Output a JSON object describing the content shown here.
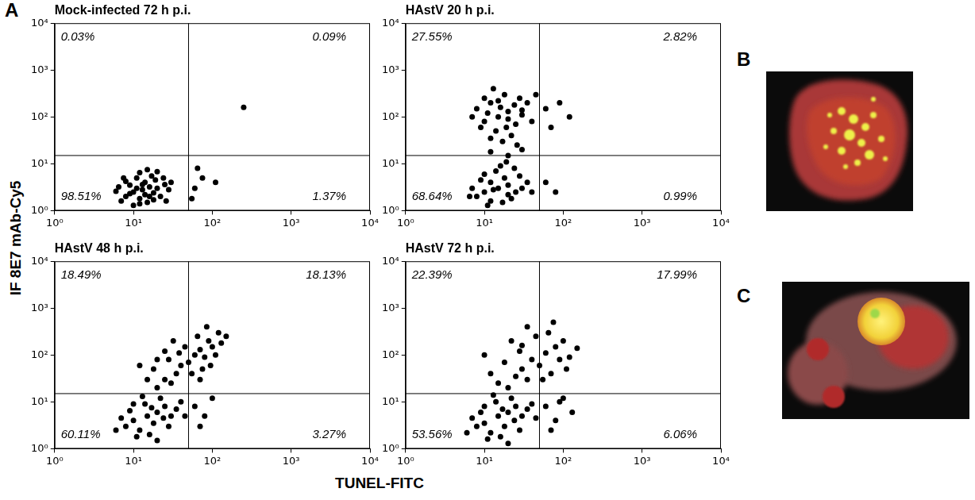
{
  "panel_labels": [
    "A",
    "B",
    "C"
  ],
  "axis_titles": {
    "x": "TUNEL-FITC",
    "y": "IF 8E7 mAb-Cy5"
  },
  "chart_data": [
    {
      "type": "scatter",
      "title": "Mock-infected 72 h p.i.",
      "color": "#000000",
      "log": true,
      "grid": false,
      "xlim": [
        1,
        10000
      ],
      "ylim": [
        1,
        10000
      ],
      "xticks": [
        {
          "value": 1,
          "label": "10⁰"
        },
        {
          "value": 10,
          "label": "10¹"
        },
        {
          "value": 100,
          "label": "10²"
        },
        {
          "value": 1000,
          "label": "10³"
        },
        {
          "value": 10000,
          "label": "10⁴"
        }
      ],
      "yticks": [
        {
          "value": 1,
          "label": "10⁰"
        },
        {
          "value": 10,
          "label": "10¹"
        },
        {
          "value": 100,
          "label": "10²"
        },
        {
          "value": 1000,
          "label": "10³"
        },
        {
          "value": 10000,
          "label": "10⁴"
        }
      ],
      "quadrant_gate": {
        "x": 50,
        "y": 15
      },
      "quadrants": {
        "upper_left": "0.03%",
        "upper_right": "0.09%",
        "lower_left": "98.51%",
        "lower_right": "1.37%"
      },
      "x": [
        13,
        10,
        16,
        8,
        12,
        18,
        14,
        9,
        20,
        11,
        7,
        15,
        22,
        6,
        25,
        17,
        12,
        19,
        10,
        14,
        8,
        24,
        28,
        6.5,
        13,
        16,
        11,
        20,
        9,
        18,
        30,
        7.5,
        15,
        26,
        12,
        60,
        75,
        55,
        110,
        65,
        250
      ],
      "values": [
        2.8,
        2.5,
        3.2,
        2,
        1.8,
        2.4,
        4,
        3.5,
        3,
        5,
        1.6,
        1.5,
        2,
        2.6,
        3.6,
        5.5,
        6.5,
        4.5,
        1.3,
        2.2,
        4.2,
        5,
        2.8,
        3.2,
        3.6,
        2,
        3,
        6.8,
        2.3,
        1.7,
        4,
        5,
        7.5,
        1.6,
        1.4,
        3,
        5,
        1.8,
        4,
        8,
        160
      ]
    },
    {
      "type": "scatter",
      "title": "HAstV 20 h p.i.",
      "color": "#000000",
      "log": true,
      "grid": false,
      "xlim": [
        1,
        10000
      ],
      "ylim": [
        1,
        10000
      ],
      "xticks": [
        {
          "value": 1,
          "label": "10⁰"
        },
        {
          "value": 10,
          "label": "10¹"
        },
        {
          "value": 100,
          "label": "10²"
        },
        {
          "value": 1000,
          "label": "10³"
        },
        {
          "value": 10000,
          "label": "10⁴"
        }
      ],
      "yticks": [
        {
          "value": 1,
          "label": "10⁰"
        },
        {
          "value": 10,
          "label": "10¹"
        },
        {
          "value": 100,
          "label": "10²"
        },
        {
          "value": 1000,
          "label": "10³"
        },
        {
          "value": 10000,
          "label": "10⁴"
        }
      ],
      "quadrant_gate": {
        "x": 50,
        "y": 15
      },
      "quadrants": {
        "upper_left": "27.55%",
        "upper_right": "2.82%",
        "lower_left": "68.64%",
        "lower_right": "0.99%"
      },
      "x": [
        15,
        10,
        20,
        8,
        12,
        25,
        18,
        9,
        30,
        14,
        11,
        22,
        7,
        28,
        16,
        12,
        20,
        35,
        10,
        24,
        6.5,
        17,
        13,
        40,
        19,
        15,
        10,
        20,
        12,
        25,
        8,
        18,
        30,
        14,
        22,
        9,
        16,
        35,
        11,
        28,
        13,
        20,
        7,
        24,
        17,
        40,
        12,
        30,
        19,
        45,
        60,
        70,
        26,
        10,
        15,
        90,
        120,
        60,
        80,
        20,
        30,
        12
      ],
      "values": [
        3,
        2.5,
        3.5,
        2,
        1.6,
        2.5,
        5,
        4.5,
        3,
        7,
        1.3,
        1.8,
        3,
        5.5,
        9,
        4,
        2.2,
        4,
        6,
        8,
        2,
        1.5,
        2.8,
        2.5,
        11,
        100,
        80,
        130,
        200,
        70,
        150,
        300,
        110,
        50,
        40,
        60,
        160,
        200,
        120,
        250,
        400,
        90,
        100,
        180,
        30,
        80,
        35,
        140,
        60,
        300,
        150,
        60,
        25,
        250,
        220,
        200,
        100,
        4,
        2.5,
        15,
        20,
        18
      ]
    },
    {
      "type": "scatter",
      "title": "HAstV 48 h p.i.",
      "color": "#000000",
      "log": true,
      "grid": false,
      "xlim": [
        1,
        10000
      ],
      "ylim": [
        1,
        10000
      ],
      "xticks": [
        {
          "value": 1,
          "label": "10⁰"
        },
        {
          "value": 10,
          "label": "10¹"
        },
        {
          "value": 100,
          "label": "10²"
        },
        {
          "value": 1000,
          "label": "10³"
        },
        {
          "value": 10000,
          "label": "10⁴"
        }
      ],
      "yticks": [
        {
          "value": 1,
          "label": "10⁰"
        },
        {
          "value": 10,
          "label": "10¹"
        },
        {
          "value": 100,
          "label": "10²"
        },
        {
          "value": 1000,
          "label": "10³"
        },
        {
          "value": 10000,
          "label": "10⁴"
        }
      ],
      "quadrant_gate": {
        "x": 50,
        "y": 15
      },
      "quadrants": {
        "upper_left": "18.49%",
        "upper_right": "18.13%",
        "lower_left": "60.11%",
        "lower_right": "3.27%"
      },
      "x": [
        15,
        10,
        20,
        8,
        12,
        25,
        18,
        30,
        9,
        14,
        22,
        11,
        35,
        16,
        7,
        28,
        40,
        13,
        20,
        45,
        10,
        6,
        24,
        17,
        20,
        25,
        30,
        15,
        35,
        40,
        18,
        28,
        50,
        60,
        70,
        80,
        90,
        100,
        120,
        75,
        65,
        110,
        45,
        55,
        130,
        85,
        150,
        25,
        32,
        20,
        12,
        38,
        95,
        70,
        60,
        80,
        100,
        70
      ],
      "values": [
        5,
        4,
        6,
        3,
        2.5,
        8,
        3.5,
        5,
        6.5,
        9,
        12,
        1.8,
        7,
        2,
        4.5,
        3,
        10,
        13,
        1.5,
        5,
        9,
        2.5,
        4.5,
        7.5,
        20,
        30,
        25,
        30,
        40,
        60,
        50,
        80,
        70,
        100,
        130,
        90,
        200,
        150,
        300,
        50,
        250,
        100,
        150,
        40,
        180,
        400,
        250,
        120,
        200,
        80,
        60,
        110,
        60,
        30,
        8,
        5,
        12,
        3
      ]
    },
    {
      "type": "scatter",
      "title": "HAstV 72 h p.i.",
      "color": "#000000",
      "log": true,
      "grid": false,
      "xlim": [
        1,
        10000
      ],
      "ylim": [
        1,
        10000
      ],
      "xticks": [
        {
          "value": 1,
          "label": "10⁰"
        },
        {
          "value": 10,
          "label": "10¹"
        },
        {
          "value": 100,
          "label": "10²"
        },
        {
          "value": 1000,
          "label": "10³"
        },
        {
          "value": 10000,
          "label": "10⁴"
        }
      ],
      "yticks": [
        {
          "value": 1,
          "label": "10⁰"
        },
        {
          "value": 10,
          "label": "10¹"
        },
        {
          "value": 100,
          "label": "10²"
        },
        {
          "value": 1000,
          "label": "10³"
        },
        {
          "value": 10000,
          "label": "10⁴"
        }
      ],
      "quadrant_gate": {
        "x": 50,
        "y": 15
      },
      "quadrants": {
        "upper_left": "22.39%",
        "upper_right": "17.99%",
        "lower_left": "53.56%",
        "lower_right": "6.06%"
      },
      "x": [
        15,
        10,
        20,
        8,
        12,
        25,
        18,
        30,
        9,
        14,
        22,
        11,
        35,
        16,
        7,
        28,
        40,
        13,
        20,
        45,
        10,
        6,
        24,
        17,
        20,
        25,
        15,
        30,
        12,
        35,
        40,
        18,
        28,
        50,
        60,
        70,
        80,
        22,
        45,
        90,
        100,
        120,
        35,
        65,
        10,
        55,
        150,
        75,
        30,
        110,
        60,
        80,
        100,
        70,
        130,
        90
      ],
      "values": [
        5,
        3.5,
        6,
        3,
        2.2,
        8,
        3,
        5,
        6,
        10,
        12,
        1.6,
        7,
        1.8,
        4.5,
        2.5,
        9,
        14,
        1.3,
        4.5,
        8,
        2.2,
        4,
        7,
        20,
        35,
        25,
        50,
        40,
        30,
        80,
        70,
        120,
        60,
        110,
        40,
        150,
        200,
        250,
        80,
        200,
        90,
        400,
        300,
        100,
        30,
        140,
        500,
        160,
        50,
        8,
        4,
        12,
        2.5,
        6,
        10
      ]
    }
  ]
}
